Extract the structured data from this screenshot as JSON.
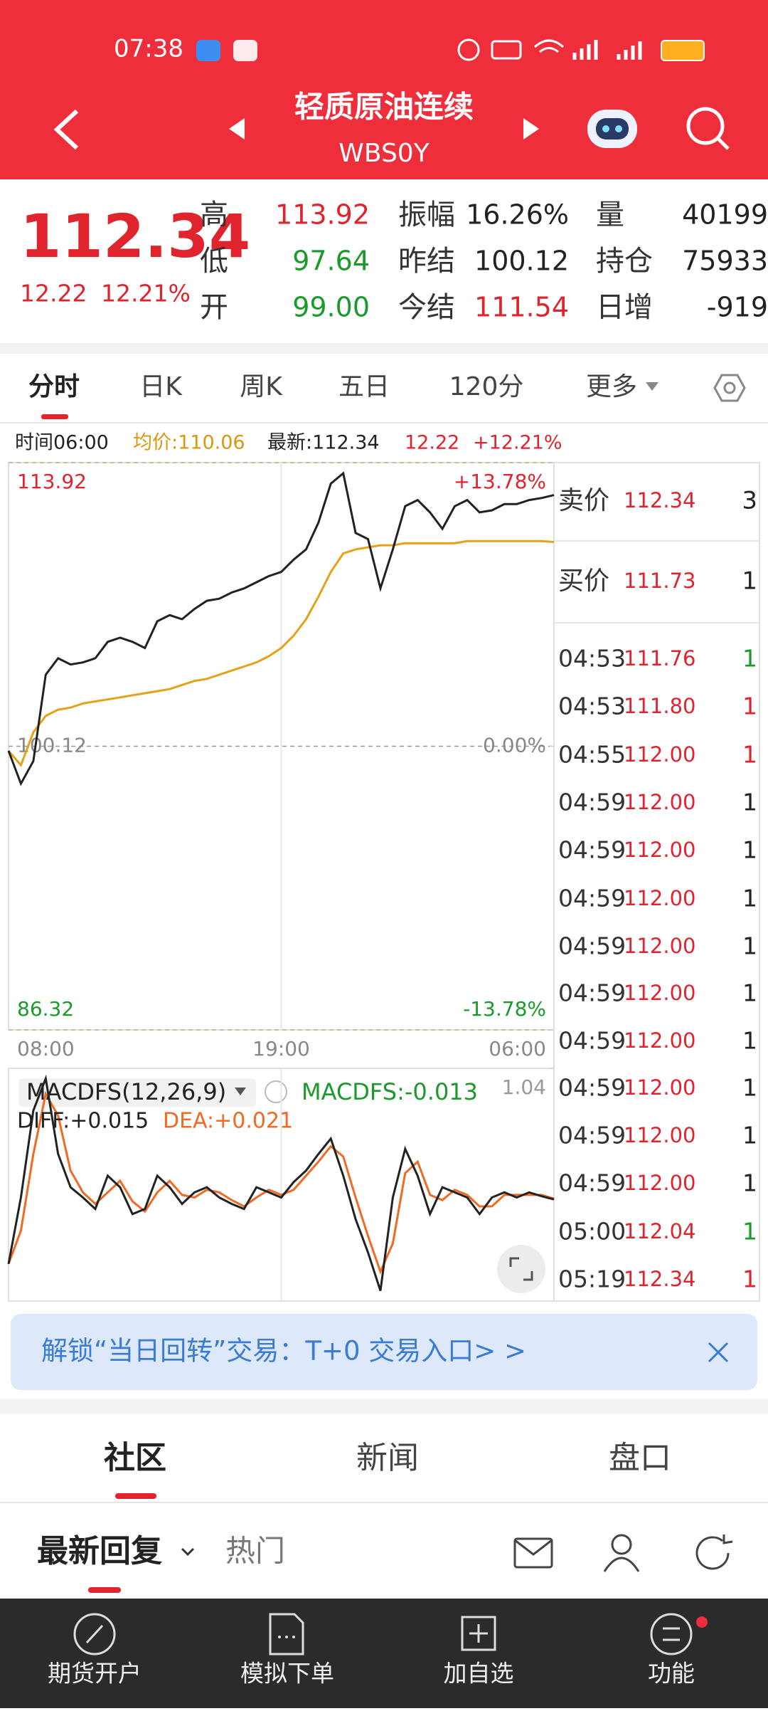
{
  "status_bar": {
    "time": "07:38"
  },
  "header": {
    "title": "轻质原油连续",
    "code": "WBS0Y"
  },
  "quote": {
    "price": "112.34",
    "change": "12.22",
    "change_pct": "12.21%",
    "stats": [
      [
        {
          "label": "高",
          "value": "113.92",
          "color": "#e0242e"
        },
        {
          "label": "低",
          "value": "97.64",
          "color": "#1a9a2a"
        },
        {
          "label": "开",
          "value": "99.00",
          "color": "#1a9a2a"
        }
      ],
      [
        {
          "label": "振幅",
          "value": "16.26%",
          "color": "#222222"
        },
        {
          "label": "昨结",
          "value": "100.12",
          "color": "#222222"
        },
        {
          "label": "今结",
          "value": "111.54",
          "color": "#e0242e"
        }
      ],
      [
        {
          "label": "量",
          "value": "40199",
          "color": "#222222"
        },
        {
          "label": "持仓",
          "value": "75933",
          "color": "#222222"
        },
        {
          "label": "日增",
          "value": "-919",
          "color": "#222222"
        }
      ]
    ]
  },
  "tabs": [
    "分时",
    "日K",
    "周K",
    "五日",
    "120分",
    "更多"
  ],
  "info": {
    "time": "时间06:00",
    "change": "12.22",
    "pct": "+12.21%"
  },
  "chart_data": [
    {
      "type": "line",
      "x": [
        "08:00",
        "08:30",
        "09:00",
        "09:30",
        "10:00",
        "10:30",
        "11:00",
        "11:30",
        "12:00",
        "12:30",
        "13:00",
        "13:30",
        "14:00",
        "14:30",
        "15:00",
        "15:30",
        "16:00",
        "16:30",
        "17:00",
        "17:30",
        "18:00",
        "18:30",
        "19:00",
        "19:30",
        "20:00",
        "20:30",
        "21:00",
        "21:30",
        "22:00",
        "22:30",
        "23:00",
        "23:30",
        "00:00",
        "00:30",
        "01:00",
        "01:30",
        "02:00",
        "02:30",
        "03:00",
        "03:30",
        "04:00",
        "04:30",
        "05:00",
        "05:30",
        "06:00"
      ],
      "xticks": [
        "08:00",
        "19:00",
        "06:00"
      ],
      "ylim": [
        86.32,
        113.92
      ],
      "yticks": [
        86.32,
        100.12,
        113.92
      ],
      "y2lim": [
        -13.78,
        13.78
      ],
      "y2ticks": [
        {
          "value": -13.78,
          "label": "-13.78%"
        },
        {
          "value": 0,
          "label": "0.00%"
        },
        {
          "value": 13.78,
          "label": "+13.78%"
        }
      ],
      "series": [
        {
          "name": "最新:112.34",
          "color": "#222222",
          "values": [
            99.9,
            98.3,
            99.4,
            103.6,
            104.4,
            104.1,
            104.2,
            104.4,
            105.2,
            105.4,
            105.2,
            104.9,
            106.2,
            106.5,
            106.3,
            106.8,
            107.2,
            107.3,
            107.6,
            107.8,
            108.1,
            108.4,
            108.6,
            109.2,
            109.7,
            111.0,
            112.9,
            113.4,
            110.5,
            110.2,
            107.8,
            109.7,
            111.8,
            112.1,
            111.5,
            110.7,
            111.8,
            112.1,
            111.5,
            111.6,
            111.9,
            111.9,
            112.1,
            112.2,
            112.34
          ]
        },
        {
          "name": "均价:110.06",
          "color": "#e3a21a",
          "values": [
            99.9,
            99.2,
            100.8,
            101.6,
            101.9,
            102.0,
            102.2,
            102.3,
            102.4,
            102.5,
            102.6,
            102.7,
            102.8,
            102.9,
            103.1,
            103.3,
            103.4,
            103.6,
            103.8,
            104.0,
            104.2,
            104.5,
            104.9,
            105.5,
            106.3,
            107.4,
            108.6,
            109.5,
            109.7,
            109.8,
            109.9,
            109.9,
            110.0,
            110.0,
            110.0,
            110.0,
            110.0,
            110.1,
            110.1,
            110.1,
            110.1,
            110.1,
            110.1,
            110.1,
            110.06
          ]
        }
      ]
    },
    {
      "type": "line",
      "title": "MACDFS(12,26,9)",
      "indicator": "MACDFS:-0.013",
      "ylim": [
        -0.78,
        1.04
      ],
      "yticks": [
        1.04
      ],
      "series": [
        {
          "name": "DIFF:+0.015",
          "color": "#222222",
          "values": [
            -0.49,
            0.03,
            0.71,
            0.96,
            0.37,
            0.11,
            0.03,
            -0.06,
            0.2,
            0.11,
            -0.1,
            -0.06,
            0.2,
            0.11,
            -0.02,
            0.07,
            0.11,
            0.03,
            -0.02,
            -0.06,
            0.11,
            0.07,
            0.03,
            0.15,
            0.24,
            0.37,
            0.49,
            0.2,
            -0.14,
            -0.4,
            -0.7,
            0.03,
            0.41,
            0.2,
            -0.1,
            0.11,
            0.07,
            0.03,
            -0.1,
            0.03,
            0.07,
            0.03,
            0.07,
            0.04,
            0.015
          ]
        },
        {
          "name": "DEA:+0.021",
          "color": "#f06a22",
          "values": [
            -0.49,
            -0.23,
            0.37,
            0.84,
            0.67,
            0.24,
            0.07,
            -0.02,
            0.07,
            0.16,
            0.0,
            -0.08,
            0.07,
            0.16,
            0.05,
            0.03,
            0.09,
            0.07,
            0.01,
            -0.04,
            0.03,
            0.09,
            0.05,
            0.09,
            0.2,
            0.31,
            0.43,
            0.35,
            0.03,
            -0.27,
            -0.55,
            -0.33,
            0.22,
            0.31,
            0.05,
            0.01,
            0.09,
            0.05,
            -0.04,
            -0.04,
            0.05,
            0.05,
            0.05,
            0.05,
            0.021
          ]
        }
      ]
    }
  ],
  "book": [
    {
      "label": "卖价",
      "price": "112.34",
      "volume": "3"
    },
    {
      "label": "买价",
      "price": "111.73",
      "volume": "1"
    }
  ],
  "trades": [
    {
      "time": "04:53",
      "price": "111.76",
      "volume": "1",
      "color": "#1a9a2a"
    },
    {
      "time": "04:53",
      "price": "111.80",
      "volume": "1",
      "color": "#e0242e"
    },
    {
      "time": "04:55",
      "price": "112.00",
      "volume": "1",
      "color": "#e0242e"
    },
    {
      "time": "04:59",
      "price": "112.00",
      "volume": "1",
      "color": "#222222"
    },
    {
      "time": "04:59",
      "price": "112.00",
      "volume": "1",
      "color": "#222222"
    },
    {
      "time": "04:59",
      "price": "112.00",
      "volume": "1",
      "color": "#222222"
    },
    {
      "time": "04:59",
      "price": "112.00",
      "volume": "1",
      "color": "#222222"
    },
    {
      "time": "04:59",
      "price": "112.00",
      "volume": "1",
      "color": "#222222"
    },
    {
      "time": "04:59",
      "price": "112.00",
      "volume": "1",
      "color": "#222222"
    },
    {
      "time": "04:59",
      "price": "112.00",
      "volume": "1",
      "color": "#222222"
    },
    {
      "time": "04:59",
      "price": "112.00",
      "volume": "1",
      "color": "#222222"
    },
    {
      "time": "04:59",
      "price": "112.00",
      "volume": "1",
      "color": "#222222"
    },
    {
      "time": "05:00",
      "price": "112.04",
      "volume": "1",
      "color": "#1a9a2a"
    },
    {
      "time": "05:19",
      "price": "112.34",
      "volume": "1",
      "color": "#e0242e"
    }
  ],
  "banner": "解锁“当日回转”交易：T+0 交易入口> >",
  "section_tabs": [
    "社区",
    "新闻",
    "盘口"
  ],
  "sub_tabs": [
    "最新回复",
    "热门"
  ],
  "nav": [
    "期货开户",
    "模拟下单",
    "加自选",
    "功能"
  ]
}
